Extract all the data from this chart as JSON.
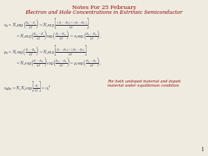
{
  "title": "Notes For 25 February",
  "subtitle": "Electron and Hole Concentrations in Extrinsic Semiconductor",
  "title_color": "#8B0000",
  "subtitle_color": "#8B0000",
  "bg_color": "#f0ebe0",
  "text_color": "#2c2c2c",
  "eq_color": "#1a1a3a",
  "note_color": "#8B0000",
  "page_number": "1",
  "title_fontsize": 5.8,
  "subtitle_fontsize": 5.2,
  "eq_fontsize": 4.2,
  "note_fontsize": 4.0
}
